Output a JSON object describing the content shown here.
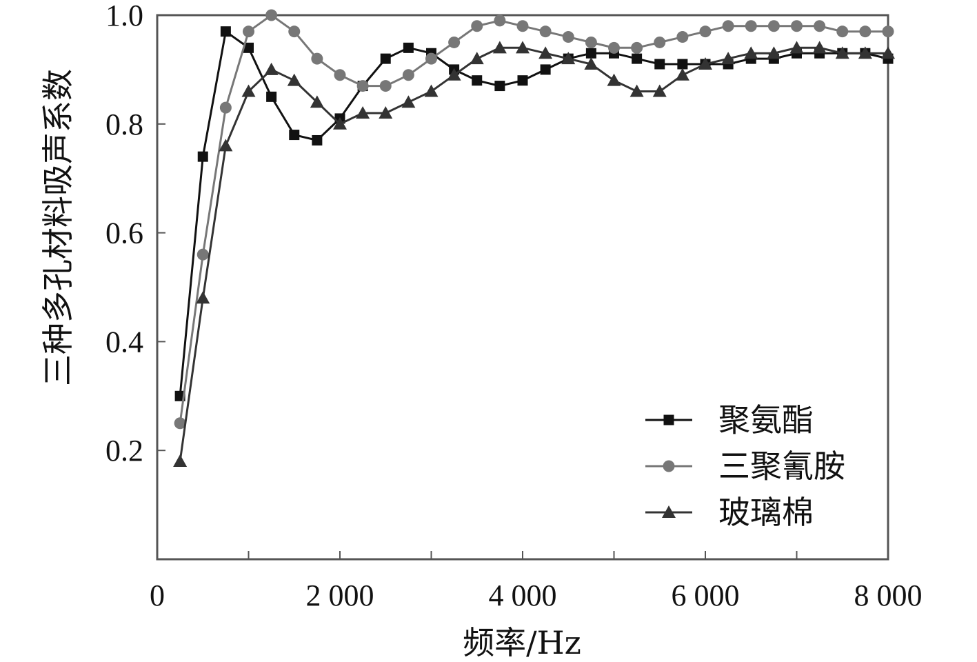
{
  "chart_data": {
    "type": "line",
    "xlabel": "频率/Hz",
    "ylabel": "三种多孔材料吸声系数",
    "xlim": [
      0,
      8000
    ],
    "ylim": [
      0,
      1.0
    ],
    "x_ticks": [
      0,
      1000,
      2000,
      3000,
      4000,
      5000,
      6000,
      7000,
      8000
    ],
    "x_tick_labels": [
      "0",
      "",
      "2 000",
      "",
      "4 000",
      "",
      "6 000",
      "",
      "8 000"
    ],
    "y_ticks": [
      0.2,
      0.4,
      0.6,
      0.8,
      1.0
    ],
    "y_tick_labels": [
      "0.2",
      "0.4",
      "0.6",
      "0.8",
      "1.0"
    ],
    "grid": false,
    "legend_position": "bottom-right",
    "series": [
      {
        "name": "聚氨酯",
        "marker": "square",
        "color": "#111111",
        "x": [
          250,
          500,
          750,
          1000,
          1250,
          1500,
          1750,
          2000,
          2250,
          2500,
          2750,
          3000,
          3250,
          3500,
          3750,
          4000,
          4250,
          4500,
          4750,
          5000,
          5250,
          5500,
          5750,
          6000,
          6250,
          6500,
          6750,
          7000,
          7250,
          7500,
          7750,
          8000
        ],
        "y": [
          0.3,
          0.74,
          0.97,
          0.94,
          0.85,
          0.78,
          0.77,
          0.81,
          0.87,
          0.92,
          0.94,
          0.93,
          0.9,
          0.88,
          0.87,
          0.88,
          0.9,
          0.92,
          0.93,
          0.93,
          0.92,
          0.91,
          0.91,
          0.91,
          0.91,
          0.92,
          0.92,
          0.93,
          0.93,
          0.93,
          0.93,
          0.92
        ]
      },
      {
        "name": "三聚氰胺",
        "marker": "circle",
        "color": "#777777",
        "x": [
          250,
          500,
          750,
          1000,
          1250,
          1500,
          1750,
          2000,
          2250,
          2500,
          2750,
          3000,
          3250,
          3500,
          3750,
          4000,
          4250,
          4500,
          4750,
          5000,
          5250,
          5500,
          5750,
          6000,
          6250,
          6500,
          6750,
          7000,
          7250,
          7500,
          7750,
          8000
        ],
        "y": [
          0.25,
          0.56,
          0.83,
          0.97,
          1.0,
          0.97,
          0.92,
          0.89,
          0.87,
          0.87,
          0.89,
          0.92,
          0.95,
          0.98,
          0.99,
          0.98,
          0.97,
          0.96,
          0.95,
          0.94,
          0.94,
          0.95,
          0.96,
          0.97,
          0.98,
          0.98,
          0.98,
          0.98,
          0.98,
          0.97,
          0.97,
          0.97
        ]
      },
      {
        "name": "玻璃棉",
        "marker": "triangle",
        "color": "#333333",
        "x": [
          250,
          500,
          750,
          1000,
          1250,
          1500,
          1750,
          2000,
          2250,
          2500,
          2750,
          3000,
          3250,
          3500,
          3750,
          4000,
          4250,
          4500,
          4750,
          5000,
          5250,
          5500,
          5750,
          6000,
          6250,
          6500,
          6750,
          7000,
          7250,
          7500,
          7750,
          8000
        ],
        "y": [
          0.18,
          0.48,
          0.76,
          0.86,
          0.9,
          0.88,
          0.84,
          0.8,
          0.82,
          0.82,
          0.84,
          0.86,
          0.89,
          0.92,
          0.94,
          0.94,
          0.93,
          0.92,
          0.91,
          0.88,
          0.86,
          0.86,
          0.89,
          0.91,
          0.92,
          0.93,
          0.93,
          0.94,
          0.94,
          0.93,
          0.93,
          0.93
        ]
      }
    ]
  }
}
